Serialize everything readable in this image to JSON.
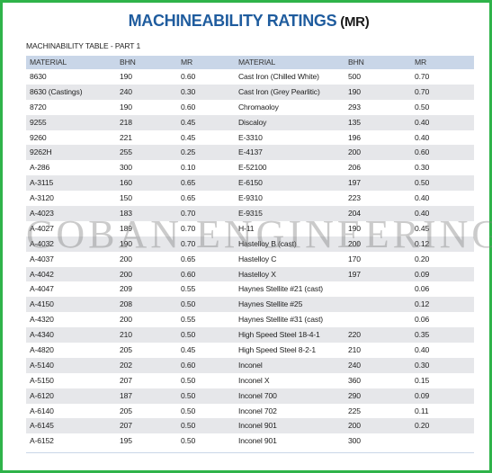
{
  "title": {
    "main": "MACHINEABILITY RATINGS",
    "abbr": "(MR)"
  },
  "subtitle": "MACHINABILITY TABLE - PART 1",
  "headers": [
    "MATERIAL",
    "BHN",
    "MR",
    "MATERIAL",
    "BHN",
    "MR"
  ],
  "rows": [
    [
      "8630",
      "190",
      "0.60",
      "Cast Iron (Chilled White)",
      "500",
      "0.70"
    ],
    [
      "8630 (Castings)",
      "240",
      "0.30",
      "Cast Iron (Grey Pearlitic)",
      "190",
      "0.70"
    ],
    [
      "8720",
      "190",
      "0.60",
      "Chromaoloy",
      "293",
      "0.50"
    ],
    [
      "9255",
      "218",
      "0.45",
      "Discaloy",
      "135",
      "0.40"
    ],
    [
      "9260",
      "221",
      "0.45",
      "E-3310",
      "196",
      "0.40"
    ],
    [
      "9262H",
      "255",
      "0.25",
      "E-4137",
      "200",
      "0.60"
    ],
    [
      "A-286",
      "300",
      "0.10",
      "E-52100",
      "206",
      "0.30"
    ],
    [
      "A-3115",
      "160",
      "0.65",
      "E-6150",
      "197",
      "0.50"
    ],
    [
      "A-3120",
      "150",
      "0.65",
      "E-9310",
      "223",
      "0.40"
    ],
    [
      "A-4023",
      "183",
      "0.70",
      "E-9315",
      "204",
      "0.40"
    ],
    [
      "A-4027",
      "189",
      "0.70",
      "H-11",
      "190",
      "0.45"
    ],
    [
      "A-4032",
      "190",
      "0.70",
      "Hastelloy B (cast)",
      "200",
      "0.12"
    ],
    [
      "A-4037",
      "200",
      "0.65",
      "Hastelloy C",
      "170",
      "0.20"
    ],
    [
      "A-4042",
      "200",
      "0.60",
      "Hastelloy X",
      "197",
      "0.09"
    ],
    [
      "A-4047",
      "209",
      "0.55",
      "Haynes Stellite #21 (cast)",
      "",
      "0.06"
    ],
    [
      "A-4150",
      "208",
      "0.50",
      "Haynes Stellite #25",
      "",
      "0.12"
    ],
    [
      "A-4320",
      "200",
      "0.55",
      "Haynes Stellite #31 (cast)",
      "",
      "0.06"
    ],
    [
      "A-4340",
      "210",
      "0.50",
      "High Speed Steel 18-4-1",
      "220",
      "0.35"
    ],
    [
      "A-4820",
      "205",
      "0.45",
      "High Speed Steel 8-2-1",
      "210",
      "0.40"
    ],
    [
      "A-5140",
      "202",
      "0.60",
      "Inconel",
      "240",
      "0.30"
    ],
    [
      "A-5150",
      "207",
      "0.50",
      "Inconel X",
      "360",
      "0.15"
    ],
    [
      "A-6120",
      "187",
      "0.50",
      "Inconel 700",
      "290",
      "0.09"
    ],
    [
      "A-6140",
      "205",
      "0.50",
      "Inconel 702",
      "225",
      "0.11"
    ],
    [
      "A-6145",
      "207",
      "0.50",
      "Inconel 901",
      "200",
      "0.20"
    ],
    [
      "A-6152",
      "195",
      "0.50",
      "Inconel 901",
      "300",
      ""
    ]
  ],
  "watermark": "COBAN ENGINEERING",
  "colors": {
    "title": "#1f5c9e",
    "frame": "#2fb34a",
    "header_row": "#c9d6e8",
    "alt_row": "#e6e7ea"
  }
}
